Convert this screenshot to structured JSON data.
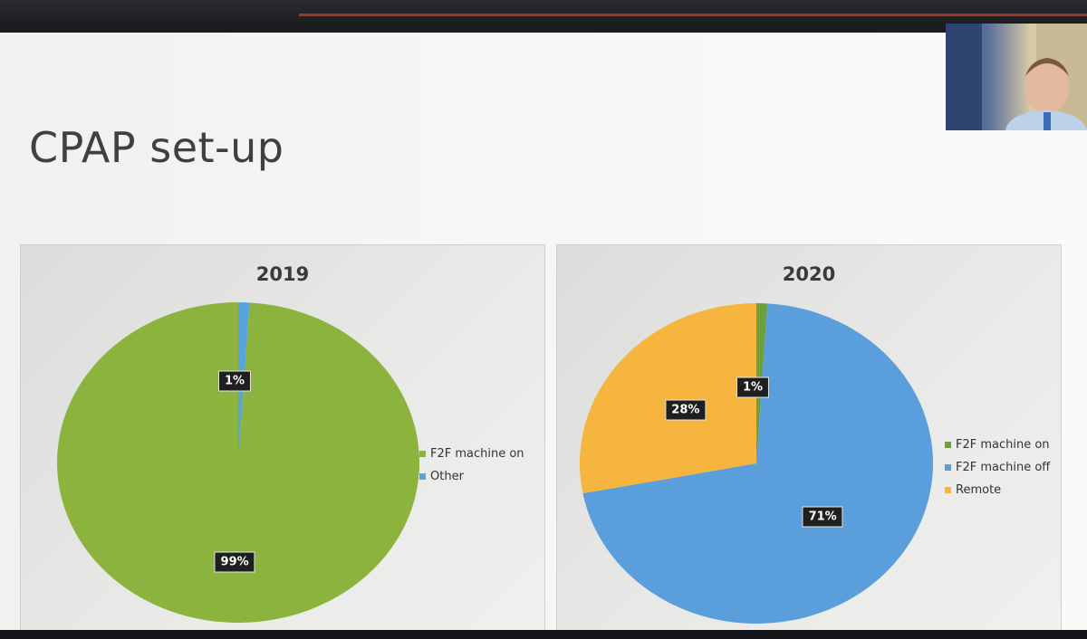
{
  "slide": {
    "title": "CPAP set-up"
  },
  "chart_data": [
    {
      "type": "pie",
      "title": "2019",
      "categories": [
        "F2F machine on",
        "Other"
      ],
      "values": [
        99,
        1
      ],
      "labels": [
        "99%",
        "1%"
      ],
      "colors": [
        "#8db33f",
        "#5aa4dc"
      ],
      "legend": "right"
    },
    {
      "type": "pie",
      "title": "2020",
      "categories": [
        "F2F machine on",
        "F2F machine off",
        "Remote"
      ],
      "values": [
        1,
        71,
        28
      ],
      "labels": [
        "1%",
        "71%",
        "28%"
      ],
      "colors": [
        "#6f9e3d",
        "#5a9fdc",
        "#f5b53f"
      ],
      "legend": "right"
    }
  ]
}
